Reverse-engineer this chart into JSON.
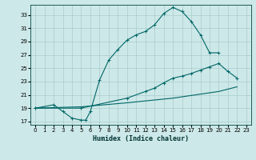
{
  "xlabel": "Humidex (Indice chaleur)",
  "bg_color": "#cde8e8",
  "grid_color": "#aacccc",
  "line_color": "#006666",
  "xlim": [
    -0.5,
    23.5
  ],
  "ylim": [
    16.5,
    34.5
  ],
  "xticks": [
    0,
    1,
    2,
    3,
    4,
    5,
    6,
    7,
    8,
    9,
    10,
    11,
    12,
    13,
    14,
    15,
    16,
    17,
    18,
    19,
    20,
    21,
    22,
    23
  ],
  "yticks": [
    17,
    19,
    21,
    23,
    25,
    27,
    29,
    31,
    33
  ],
  "curve1_x": [
    0,
    2,
    3,
    4,
    5,
    5.5,
    6,
    7,
    8,
    9,
    10,
    11,
    12,
    13,
    14,
    15,
    16,
    17,
    18,
    19,
    20
  ],
  "curve1_y": [
    19,
    19.5,
    18.5,
    17.5,
    17.2,
    17.2,
    18.5,
    23.2,
    26.2,
    27.8,
    29.2,
    30.0,
    30.5,
    31.5,
    33.2,
    34.1,
    33.5,
    32.0,
    30.0,
    27.3,
    27.3
  ],
  "curve2_x": [
    0,
    5,
    10,
    12,
    13,
    14,
    15,
    16,
    17,
    18,
    19,
    20,
    21,
    22
  ],
  "curve2_y": [
    19,
    19.0,
    20.5,
    21.5,
    22.0,
    22.8,
    23.5,
    23.8,
    24.2,
    24.7,
    25.2,
    25.7,
    24.5,
    23.5
  ],
  "curve3_x": [
    0,
    5,
    10,
    15,
    20,
    22
  ],
  "curve3_y": [
    19,
    19.2,
    19.8,
    20.5,
    21.5,
    22.2
  ]
}
